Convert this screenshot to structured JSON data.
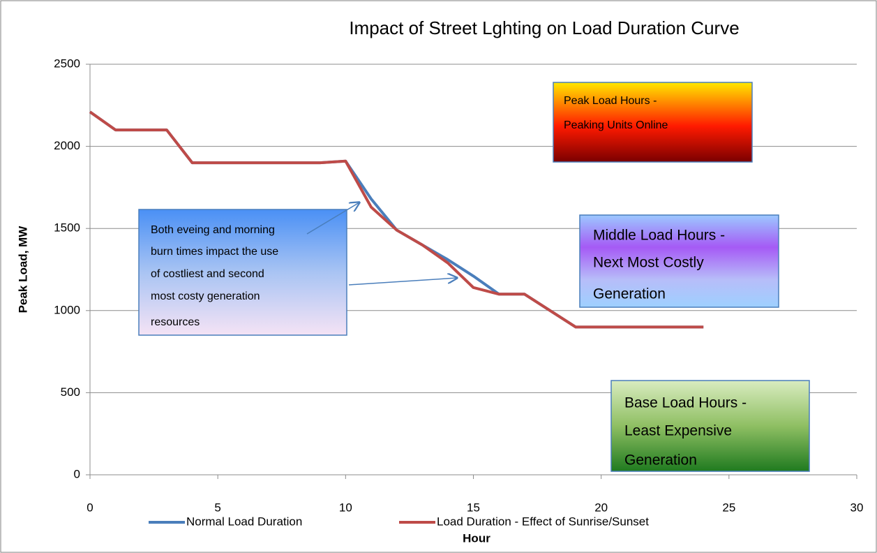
{
  "chart_data": {
    "type": "line",
    "title": "Impact of  Street Lghting on Load Duration Curve",
    "xlabel": "Hour",
    "ylabel": "Peak Load, MW",
    "x": [
      0,
      1,
      2,
      3,
      4,
      5,
      6,
      7,
      8,
      9,
      10,
      11,
      12,
      13,
      14,
      15,
      16,
      17,
      18,
      19,
      20,
      21,
      22,
      23,
      24
    ],
    "series": [
      {
        "name": "Normal Load Duration",
        "color": "#4a7ebb",
        "values": [
          2210,
          2100,
          2100,
          2100,
          1900,
          1900,
          1900,
          1900,
          1900,
          1900,
          1910,
          1680,
          1490,
          1400,
          1310,
          1210,
          1100,
          1100,
          1000,
          900,
          900,
          900,
          900,
          900,
          900
        ]
      },
      {
        "name": "Load Duration - Effect of Sunrise/Sunset",
        "color": "#be4b48",
        "values": [
          2210,
          2100,
          2100,
          2100,
          1900,
          1900,
          1900,
          1900,
          1900,
          1900,
          1910,
          1630,
          1490,
          1400,
          1290,
          1140,
          1100,
          1100,
          1000,
          900,
          900,
          900,
          900,
          900,
          900
        ]
      }
    ],
    "xlim": [
      0,
      30
    ],
    "xticks": [
      0,
      5,
      10,
      15,
      20,
      25,
      30
    ],
    "ylim": [
      0,
      2500
    ],
    "yticks": [
      0,
      500,
      1000,
      1500,
      2000,
      2500
    ],
    "grid": true,
    "legend": "bottom",
    "annotations": [
      {
        "lines": [
          "Peak Load Hours -",
          "Peaking Units  Online"
        ]
      },
      {
        "lines": [
          "Middle Load Hours -",
          "Next Most Costly",
          "Generation"
        ]
      },
      {
        "lines": [
          "Base Load Hours  -",
          "Least Expensive",
          "Generation"
        ]
      },
      {
        "lines": [
          "Both eveing and morning",
          "burn times impact the use",
          "of costliest and second",
          "most costy generation",
          "resources"
        ]
      }
    ]
  }
}
